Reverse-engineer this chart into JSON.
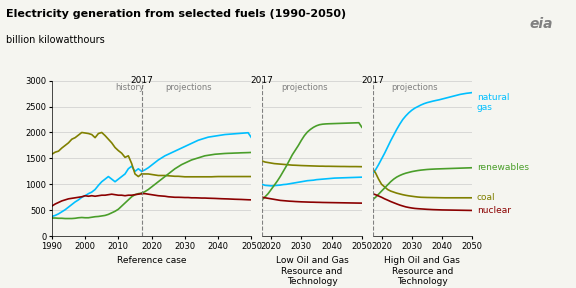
{
  "title": "Electricity generation from selected fuels (1990-2050)",
  "subtitle": "billion kilowatthours",
  "colors": {
    "natural_gas": "#00bfff",
    "coal": "#808000",
    "renewables": "#4a9e2a",
    "nuclear": "#8b0000"
  },
  "ylim": [
    0,
    3000
  ],
  "yticks": [
    0,
    500,
    1000,
    1500,
    2000,
    2500,
    3000
  ],
  "subplot_titles": [
    "Reference case",
    "Low Oil and Gas\nResource and\nTechnology",
    "High Oil and Gas\nResource and\nTechnology"
  ],
  "background_color": "#f5f5f0",
  "grid_color": "#cccccc"
}
